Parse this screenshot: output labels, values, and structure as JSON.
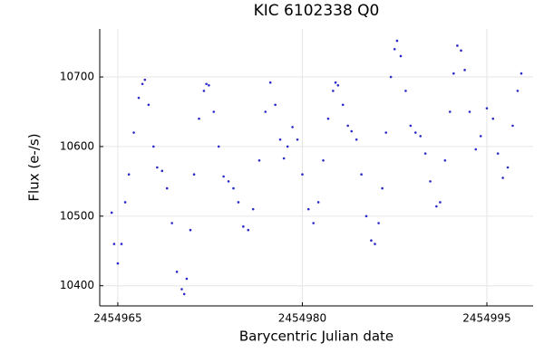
{
  "chart_data": {
    "type": "scatter",
    "title": "KIC 6102338 Q0",
    "xlabel": "Barycentric Julian date",
    "ylabel": "Flux (e-/s)",
    "xlim": [
      2454963.53,
      2454998.76
    ],
    "ylim": [
      10371,
      10769
    ],
    "xticks": [
      2454965,
      2454980,
      2454995
    ],
    "yticks": [
      10400,
      10500,
      10600,
      10700
    ],
    "grid": true,
    "color": "#2a2ac8",
    "x": [
      2454964.5,
      2454964.7,
      2454965.0,
      2454965.3,
      2454965.6,
      2454965.9,
      2454966.3,
      2454966.7,
      2454967.0,
      2454967.2,
      2454967.5,
      2454967.9,
      2454968.2,
      2454968.6,
      2454969.0,
      2454969.4,
      2454969.8,
      2454970.2,
      2454970.4,
      2454970.6,
      2454970.9,
      2454971.2,
      2454971.6,
      2454972.0,
      2454972.2,
      2454972.4,
      2454972.8,
      2454973.2,
      2454973.6,
      2454974.0,
      2454974.4,
      2454974.8,
      2454975.2,
      2454975.6,
      2454976.0,
      2454976.5,
      2454977.0,
      2454977.4,
      2454977.8,
      2454978.2,
      2454978.5,
      2454978.8,
      2454979.2,
      2454979.6,
      2454980.0,
      2454980.5,
      2454980.9,
      2454981.3,
      2454981.7,
      2454982.1,
      2454982.5,
      2454982.7,
      2454982.9,
      2454983.3,
      2454983.7,
      2454984.0,
      2454984.4,
      2454984.8,
      2454985.2,
      2454985.6,
      2454985.9,
      2454986.2,
      2454986.5,
      2454986.8,
      2454987.2,
      2454987.5,
      2454987.7,
      2454988.0,
      2454988.4,
      2454988.8,
      2454989.2,
      2454989.6,
      2454990.0,
      2454990.4,
      2454990.9,
      2454991.2,
      2454991.6,
      2454992.0,
      2454992.3,
      2454992.6,
      2454992.9,
      2454993.2,
      2454993.6,
      2454994.1,
      2454994.5,
      2454995.0,
      2454995.5,
      2454995.9,
      2454996.3,
      2454996.7,
      2454997.1,
      2454997.5,
      2454997.8
    ],
    "values": [
      10505,
      10460,
      10432,
      10460,
      10520,
      10560,
      10620,
      10670,
      10690,
      10696,
      10660,
      10600,
      10570,
      10565,
      10540,
      10490,
      10420,
      10395,
      10388,
      10410,
      10480,
      10560,
      10640,
      10680,
      10690,
      10688,
      10650,
      10600,
      10557,
      10550,
      10540,
      10520,
      10485,
      10480,
      10510,
      10580,
      10650,
      10692,
      10660,
      10610,
      10583,
      10600,
      10628,
      10610,
      10560,
      10510,
      10490,
      10520,
      10580,
      10640,
      10680,
      10692,
      10688,
      10660,
      10630,
      10622,
      10610,
      10560,
      10500,
      10465,
      10460,
      10490,
      10540,
      10620,
      10700,
      10740,
      10752,
      10730,
      10680,
      10630,
      10620,
      10615,
      10590,
      10550,
      10514,
      10520,
      10580,
      10650,
      10705,
      10745,
      10738,
      10710,
      10650,
      10596,
      10615,
      10655,
      10640,
      10590,
      10555,
      10570,
      10630,
      10680,
      10705
    ]
  }
}
